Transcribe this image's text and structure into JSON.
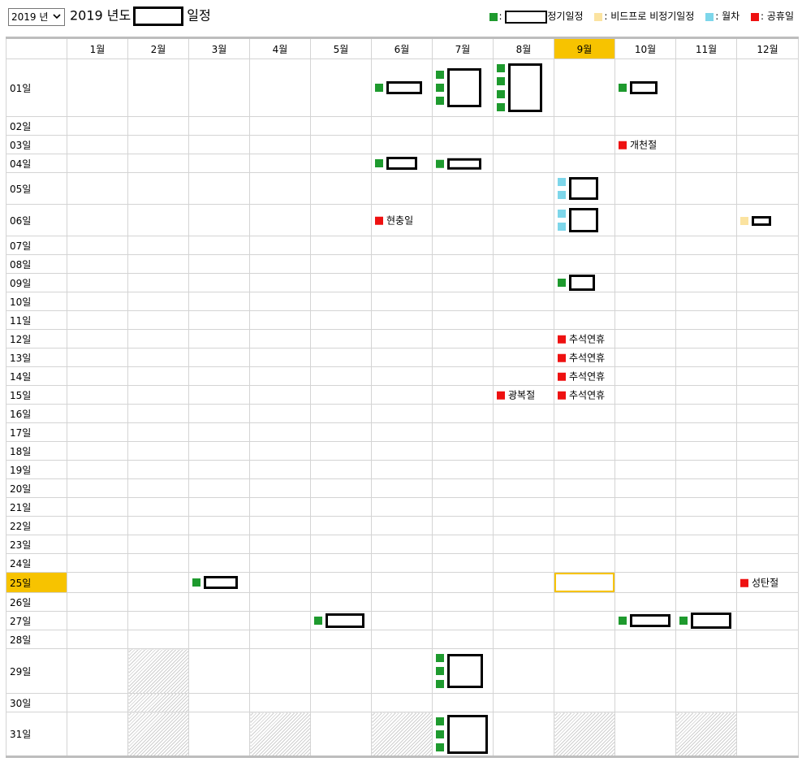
{
  "header": {
    "year_select": "2019 년",
    "title_prefix": "2019 년도",
    "title_suffix": "일정"
  },
  "legend": [
    {
      "color": "#1e9a2e",
      "label": ": ",
      "suffix": "정기일정",
      "redacted": true
    },
    {
      "color": "#fbe3a0",
      "label": ": 비드프로 비정기일정",
      "suffix": "",
      "redacted": false
    },
    {
      "color": "#7dd6ea",
      "label": ": 월차",
      "suffix": "",
      "redacted": false
    },
    {
      "color": "#ee1111",
      "label": ": 공휴일",
      "suffix": "",
      "redacted": false
    }
  ],
  "months": [
    "1월",
    "2월",
    "3월",
    "4월",
    "5월",
    "6월",
    "7월",
    "8월",
    "9월",
    "10월",
    "11월",
    "12월"
  ],
  "current_month_index": 8,
  "current_day": 25,
  "days": [
    "01일",
    "02일",
    "03일",
    "04일",
    "05일",
    "06일",
    "07일",
    "08일",
    "09일",
    "10일",
    "11일",
    "12일",
    "13일",
    "14일",
    "15일",
    "16일",
    "17일",
    "18일",
    "19일",
    "20일",
    "21일",
    "22일",
    "23일",
    "24일",
    "25일",
    "26일",
    "27일",
    "28일",
    "29일",
    "30일",
    "31일"
  ],
  "holidays": {
    "hyunchung": "현충일",
    "gwangbok": "광복절",
    "chuseok": "추석연휴",
    "gaecheon": "개천절",
    "seongtan": "성탄절"
  }
}
